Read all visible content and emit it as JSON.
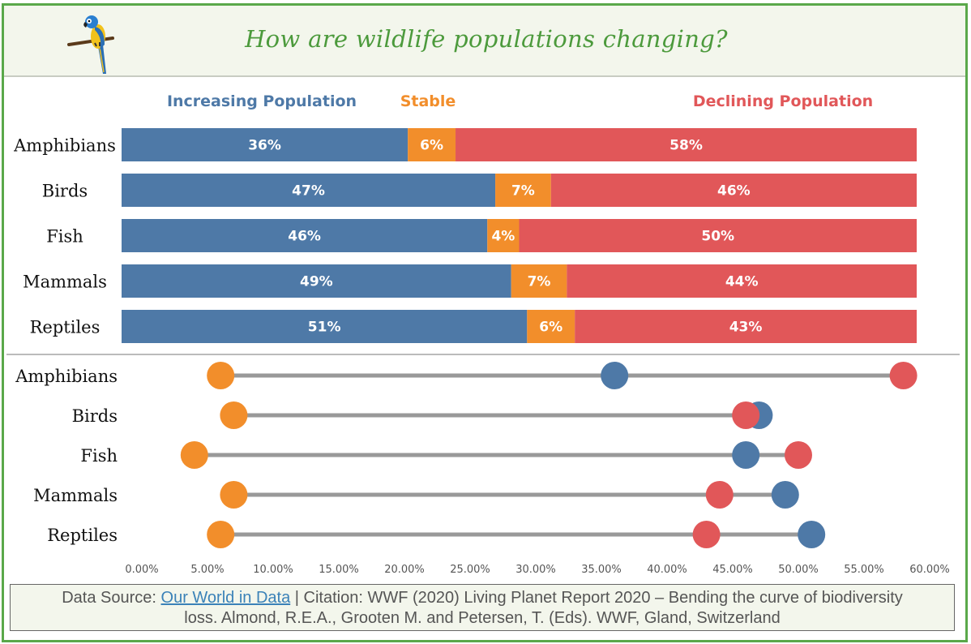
{
  "page": {
    "title": "How are wildlife populations changing?",
    "logo_icon": "parrot-icon"
  },
  "legend": [
    {
      "label": "Increasing Population",
      "color": "#4e79a7"
    },
    {
      "label": "Stable",
      "color": "#f28e2b"
    },
    {
      "label": "Declining Population",
      "color": "#e15759"
    }
  ],
  "footer": {
    "prefix": "Data Source: ",
    "link_text": "Our World in Data",
    "line1_rest": " | Citation: WWF (2020) Living Planet Report 2020 – Bending the curve of biodiversity",
    "line2": "loss. Almond, R.E.A., Grooten M. and Petersen, T. (Eds). WWF, Gland, Switzerland"
  },
  "chart_data": [
    {
      "type": "bar",
      "stacked": true,
      "orientation": "horizontal",
      "categories": [
        "Amphibians",
        "Birds",
        "Fish",
        "Mammals",
        "Reptiles"
      ],
      "series": [
        {
          "name": "Increasing Population",
          "color": "#4e79a7",
          "values": [
            36,
            47,
            46,
            49,
            51
          ]
        },
        {
          "name": "Stable",
          "color": "#f28e2b",
          "values": [
            6,
            7,
            4,
            7,
            6
          ]
        },
        {
          "name": "Declining Population",
          "color": "#e15759",
          "values": [
            58,
            46,
            50,
            44,
            43
          ]
        }
      ],
      "value_suffix": "%"
    },
    {
      "type": "scatter",
      "style": "dumbbell",
      "categories": [
        "Amphibians",
        "Birds",
        "Fish",
        "Mammals",
        "Reptiles"
      ],
      "series": [
        {
          "color": "#4e79a7",
          "values": [
            36,
            47,
            46,
            49,
            51
          ]
        },
        {
          "color": "#f28e2b",
          "values": [
            6,
            7,
            4,
            7,
            6
          ]
        },
        {
          "color": "#e15759",
          "values": [
            58,
            46,
            50,
            44,
            43
          ]
        }
      ],
      "xlim": [
        0,
        60
      ],
      "xticks": [
        "0.00%",
        "5.00%",
        "10.00%",
        "15.00%",
        "20.00%",
        "25.00%",
        "30.00%",
        "35.00%",
        "40.00%",
        "45.00%",
        "50.00%",
        "55.00%",
        "60.00%"
      ],
      "connector_color": "#999999"
    }
  ]
}
